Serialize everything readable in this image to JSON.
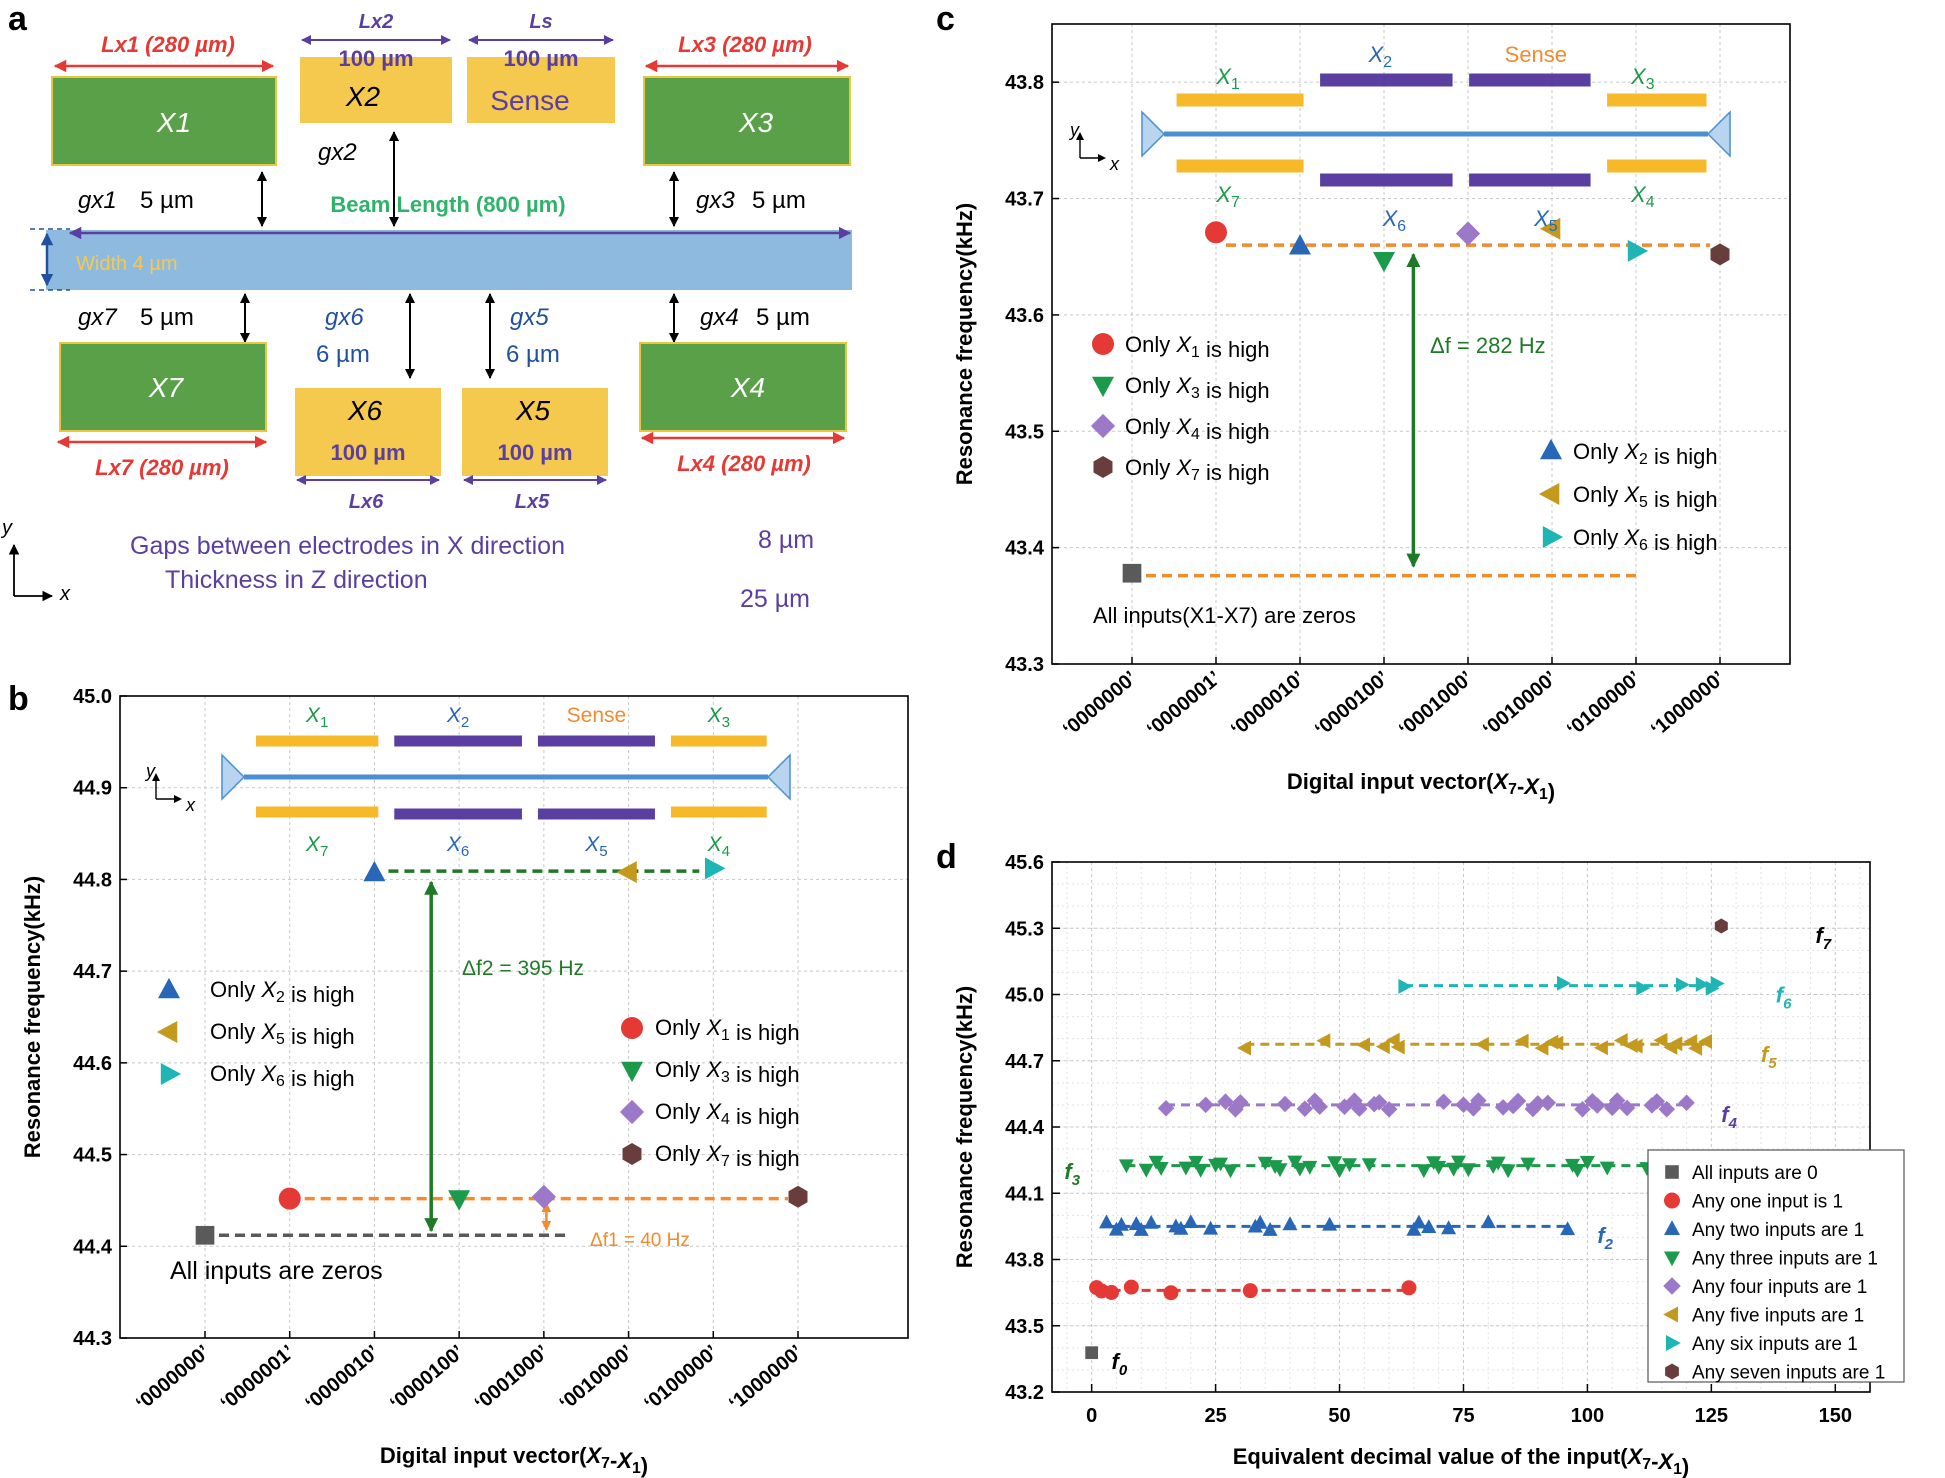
{
  "panels": {
    "a": "a",
    "b": "b",
    "c": "c",
    "d": "d"
  },
  "diagram": {
    "x1": {
      "name": "X1",
      "length": "Lx1 (280 µm)",
      "gap": "gx1",
      "gap_value": "5 µm"
    },
    "x2": {
      "name": "X2",
      "length_name": "Lx2",
      "length_value": "100 µm",
      "gap": "gx2"
    },
    "sense": {
      "name": "Sense",
      "length_name": "Ls",
      "length_value": "100 µm"
    },
    "x3": {
      "name": "X3",
      "length": "Lx3 (280 µm)",
      "gap": "gx3",
      "gap_value": "5 µm"
    },
    "x4": {
      "name": "X4",
      "length": "Lx4 (280 µm)",
      "gap": "gx4",
      "gap_value": "5 µm"
    },
    "x5": {
      "name": "X5",
      "length_name": "Lx5",
      "length_value": "100 µm",
      "gap": "gx5",
      "gap_value": "6 µm"
    },
    "x6": {
      "name": "X6",
      "length_name": "Lx6",
      "length_value": "100 µm",
      "gap": "gx6",
      "gap_value": "6 µm"
    },
    "x7": {
      "name": "X7",
      "length": "Lx7 (280 µm)",
      "gap": "gx7",
      "gap_value": "5 µm"
    },
    "beam_length": "Beam Length (800 µm)",
    "width": "Width 4 µm",
    "gaps_text": "Gaps between electrodes in X direction",
    "gaps_value": "8 µm",
    "thickness_text": "Thickness in Z direction",
    "thickness_value": "25 µm",
    "axis_y": "y",
    "axis_x": "x"
  },
  "inset": {
    "x1": "X1",
    "x2": "X2",
    "x3": "X3",
    "x4": "X4",
    "x5": "X5",
    "x6": "X6",
    "x7": "X7",
    "sense": "Sense",
    "axis_y": "y",
    "axis_x": "x"
  },
  "colors": {
    "green_electrode": "#5aa048",
    "yellow_electrode": "#f5c94d",
    "beam": "#7aaedb",
    "purple": "#5b3fa0",
    "orange": "#f28a2e",
    "red": "#e53935",
    "blue": "#2866b8",
    "teal_green": "#1a9a4a",
    "purple_marker": "#9b79c8",
    "gold": "#c49a1e",
    "cyan": "#1fb5b5",
    "brown": "#6a3d3d",
    "gray": "#5a5a5a",
    "dark_green": "#1e7a26"
  },
  "chart_data": [
    {
      "panel": "b",
      "type": "scatter",
      "title": "",
      "xlabel": "Digital input vector(X7-X1)",
      "ylabel": "Resonance frequency(kHz)",
      "categories": [
        "‘0000000’",
        "‘0000001’",
        "‘0000010’",
        "‘0000100’",
        "‘0001000’",
        "‘0010000’",
        "‘0100000’",
        "‘1000000’"
      ],
      "ylim": [
        44.3,
        45.0
      ],
      "yticks": [
        "44.3",
        "44.4",
        "44.5",
        "44.6",
        "44.7",
        "44.8",
        "44.9",
        "45.0"
      ],
      "series": [
        {
          "name": "All inputs are zeros",
          "marker": "square",
          "points": [
            [
              0,
              44.412
            ]
          ]
        },
        {
          "name": "Only X1 is high",
          "marker": "circle",
          "points": [
            [
              1,
              44.452
            ]
          ]
        },
        {
          "name": "Only X2 is high",
          "marker": "triangle-up",
          "points": [
            [
              2,
              44.807
            ]
          ]
        },
        {
          "name": "Only X3 is high",
          "marker": "triangle-down",
          "points": [
            [
              3,
              44.452
            ]
          ]
        },
        {
          "name": "Only X4 is high",
          "marker": "diamond",
          "points": [
            [
              4,
              44.454
            ]
          ]
        },
        {
          "name": "Only X5 is high",
          "marker": "triangle-left",
          "points": [
            [
              5,
              44.808
            ]
          ]
        },
        {
          "name": "Only X6 is high",
          "marker": "triangle-right",
          "points": [
            [
              6,
              44.812
            ]
          ]
        },
        {
          "name": "Only X7 is high",
          "marker": "hexagon",
          "points": [
            [
              7,
              44.454
            ]
          ]
        }
      ],
      "legend_left": [
        "Only X2 is high",
        "Only X5 is high",
        "Only X6 is high"
      ],
      "legend_right": [
        "Only X1 is high",
        "Only X3 is high",
        "Only X4 is high",
        "Only X7 is high"
      ],
      "annotations": {
        "delta_f2": "Δf2 = 395 Hz",
        "delta_f1": "Δf1 = 40 Hz",
        "zeros": "All inputs are zeros"
      }
    },
    {
      "panel": "c",
      "type": "scatter",
      "xlabel": "Digital input vector(X7-X1)",
      "ylabel": "Resonance frequency(kHz)",
      "categories": [
        "‘0000000’",
        "‘0000001’",
        "‘0000010’",
        "‘0000100’",
        "‘0001000’",
        "‘0010000’",
        "‘0100000’",
        "‘1000000’"
      ],
      "ylim": [
        43.3,
        43.85
      ],
      "yticks": [
        "43.3",
        "43.4",
        "43.5",
        "43.6",
        "43.7",
        "43.8"
      ],
      "series": [
        {
          "name": "All inputs(X1-X7) are zeros",
          "marker": "square",
          "points": [
            [
              0,
              43.378
            ]
          ]
        },
        {
          "name": "Only X1 is high",
          "marker": "circle",
          "points": [
            [
              1,
              43.671
            ]
          ]
        },
        {
          "name": "Only X2 is high",
          "marker": "triangle-up",
          "points": [
            [
              2,
              43.659
            ]
          ]
        },
        {
          "name": "Only X3 is high",
          "marker": "triangle-down",
          "points": [
            [
              3,
              43.647
            ]
          ]
        },
        {
          "name": "Only X4 is high",
          "marker": "diamond",
          "points": [
            [
              4,
              43.67
            ]
          ]
        },
        {
          "name": "Only X5 is high",
          "marker": "triangle-left",
          "points": [
            [
              5,
              43.674
            ]
          ]
        },
        {
          "name": "Only X6 is high",
          "marker": "triangle-right",
          "points": [
            [
              6,
              43.655
            ]
          ]
        },
        {
          "name": "Only X7 is high",
          "marker": "hexagon",
          "points": [
            [
              7,
              43.652
            ]
          ]
        }
      ],
      "legend_left": [
        "Only X1 is high",
        "Only X3 is high",
        "Only X4 is high",
        "Only X7 is high"
      ],
      "legend_right": [
        "Only X2 is high",
        "Only X5 is high",
        "Only X6 is high"
      ],
      "annotations": {
        "delta_f": "Δf = 282 Hz",
        "zeros": "All inputs(X1-X7) are zeros"
      }
    },
    {
      "panel": "d",
      "type": "scatter",
      "xlabel": "Equivalent decimal value of the input(X7-X1)",
      "ylabel": "Resonance frequency(kHz)",
      "xlim": [
        -8,
        157
      ],
      "xticks": [
        0,
        25,
        50,
        75,
        100,
        125,
        150
      ],
      "ylim": [
        43.2,
        45.6
      ],
      "yticks": [
        "43.2",
        "43.5",
        "43.8",
        "44.1",
        "44.4",
        "44.7",
        "45.0",
        "45.3",
        "45.6"
      ],
      "series": [
        {
          "name": "All inputs are 0",
          "marker": "square",
          "label": "f0",
          "y": 43.378,
          "x": [
            0
          ],
          "jitter": 0
        },
        {
          "name": "Any one input is 1",
          "marker": "circle",
          "label": "f1",
          "y": 43.66,
          "x": [
            1,
            2,
            4,
            8,
            16,
            32,
            64
          ],
          "jitter": 0.015
        },
        {
          "name": "Any two inputs are 1",
          "marker": "triangle-up",
          "label": "f2",
          "y": 43.95,
          "x": [
            3,
            5,
            6,
            9,
            10,
            12,
            17,
            18,
            20,
            24,
            33,
            34,
            36,
            40,
            48,
            65,
            66,
            68,
            72,
            80,
            96
          ],
          "jitter": 0.018
        },
        {
          "name": "Any three inputs are 1",
          "marker": "triangle-down",
          "label": "f3",
          "y": 44.225,
          "x": [
            7,
            11,
            13,
            14,
            19,
            21,
            22,
            25,
            26,
            28,
            35,
            37,
            38,
            41,
            42,
            44,
            49,
            50,
            52,
            56,
            67,
            69,
            70,
            73,
            74,
            76,
            81,
            82,
            84,
            88,
            97,
            98,
            100,
            104,
            112
          ],
          "jitter": 0.02
        },
        {
          "name": "Any four inputs are 1",
          "marker": "diamond",
          "label": "f4",
          "y": 44.5,
          "x": [
            15,
            23,
            27,
            29,
            30,
            39,
            43,
            45,
            46,
            51,
            53,
            54,
            57,
            58,
            60,
            71,
            75,
            77,
            78,
            83,
            85,
            86,
            89,
            90,
            92,
            99,
            101,
            102,
            105,
            106,
            108,
            113,
            114,
            116,
            120
          ],
          "jitter": 0.02
        },
        {
          "name": "Any five inputs are 1",
          "marker": "triangle-left",
          "label": "f5",
          "y": 44.775,
          "x": [
            31,
            47,
            55,
            59,
            61,
            62,
            79,
            87,
            91,
            93,
            94,
            103,
            107,
            109,
            110,
            115,
            117,
            118,
            121,
            122,
            124
          ],
          "jitter": 0.018
        },
        {
          "name": "Any six inputs are 1",
          "marker": "triangle-right",
          "label": "f6",
          "y": 45.04,
          "x": [
            63,
            95,
            111,
            119,
            123,
            125,
            126
          ],
          "jitter": 0.012
        },
        {
          "name": "Any seven inputs are 1",
          "marker": "hexagon",
          "label": "f7",
          "y": 45.31,
          "x": [
            127
          ],
          "jitter": 0
        }
      ]
    }
  ]
}
